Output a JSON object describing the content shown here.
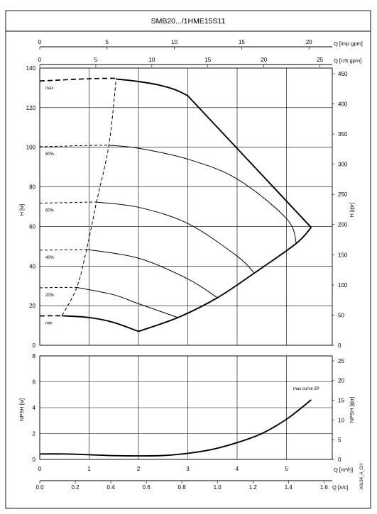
{
  "title": "SMB20.../1HME15S11",
  "doc_code": "A0194_A_CH",
  "chart_data": [
    {
      "type": "line",
      "name": "head",
      "xlabel": "Q [m³/h]",
      "ylabel_left": "H [м]",
      "ylabel_right": "H [фт]",
      "top_axis_1_label": "Q [imp gpm]",
      "top_axis_2_label": "Q [US gpm]",
      "xlim": [
        0,
        6.0
      ],
      "ylim": [
        0,
        140
      ],
      "x_ticks": [
        0,
        1,
        2,
        3,
        4,
        5
      ],
      "y_ticks": [
        0,
        20,
        40,
        60,
        80,
        100,
        120,
        140
      ],
      "y_right_ticks": [
        0,
        50,
        100,
        150,
        200,
        250,
        300,
        350,
        400,
        450
      ],
      "top_imp_ticks": [
        0,
        5,
        10,
        15,
        20
      ],
      "top_us_ticks": [
        0,
        5,
        10,
        15,
        20,
        25
      ],
      "grid": true,
      "series": [
        {
          "name": "max",
          "dashed_x": [
            0,
            0.3,
            0.6,
            1.0,
            1.4,
            1.55
          ],
          "dashed_y": [
            133.5,
            133.8,
            134.2,
            134.6,
            134.8,
            134.8
          ],
          "x": [
            1.55,
            2.0,
            2.4,
            2.75,
            3.0,
            5.5
          ],
          "y": [
            134.5,
            133.2,
            131.5,
            129.0,
            126.0,
            59.5
          ]
        },
        {
          "name": "80%",
          "dashed_x": [
            0,
            0.4,
            0.8,
            1.2,
            1.4
          ],
          "dashed_y": [
            100.3,
            100.5,
            100.8,
            101.0,
            101.0
          ],
          "x": [
            1.4,
            2.0,
            3.0,
            4.0,
            5.0,
            5.2
          ],
          "y": [
            101.0,
            99.5,
            94.0,
            84.0,
            64.0,
            51.5
          ]
        },
        {
          "name": "60%",
          "dashed_x": [
            0,
            0.5,
            1.0,
            1.15
          ],
          "dashed_y": [
            71.8,
            72.0,
            72.3,
            72.3
          ],
          "x": [
            1.15,
            2.0,
            3.0,
            4.0,
            4.35
          ],
          "y": [
            72.3,
            69.7,
            61.5,
            45.0,
            36.5
          ]
        },
        {
          "name": "40%",
          "dashed_x": [
            0,
            0.5,
            0.95
          ],
          "dashed_y": [
            48.0,
            48.2,
            48.4
          ],
          "x": [
            0.95,
            2.0,
            3.0,
            3.6
          ],
          "y": [
            48.4,
            44.0,
            33.5,
            24.0
          ]
        },
        {
          "name": "20%",
          "dashed_x": [
            0,
            0.4,
            0.75
          ],
          "dashed_y": [
            29.0,
            29.2,
            29.2
          ],
          "x": [
            0.75,
            1.5,
            2.0,
            2.8
          ],
          "y": [
            29.2,
            25.5,
            21.0,
            14.0
          ]
        },
        {
          "name": "min",
          "dashed_x": [
            0,
            0.25,
            0.45
          ],
          "dashed_y": [
            14.8,
            14.9,
            14.9
          ],
          "x": [
            0.45,
            1.0,
            1.5,
            2.0
          ],
          "y": [
            14.9,
            14.0,
            11.5,
            7.0
          ]
        }
      ],
      "boundary_min_to_max": {
        "x": [
          2.0,
          2.8,
          3.6,
          4.35,
          5.2,
          5.5
        ],
        "y": [
          7.0,
          14.0,
          24.0,
          36.5,
          51.5,
          59.5
        ]
      },
      "max_flow_dashed": {
        "x": [
          0.45,
          0.75,
          0.95,
          1.15,
          1.4,
          1.55
        ],
        "y": [
          14.9,
          29.2,
          48.4,
          72.3,
          101.0,
          134.8
        ]
      }
    },
    {
      "type": "line",
      "name": "npsh",
      "xlabel": "Q [m³/h]",
      "x2label": "Q [л/с]",
      "ylabel_left": "NPSH [м]",
      "ylabel_right": "NPSH [фт]",
      "xlim": [
        0,
        6.0
      ],
      "ylim": [
        0,
        8
      ],
      "x_ticks": [
        0,
        1,
        2,
        3,
        4,
        5
      ],
      "ls_ticks": [
        0.0,
        0.2,
        0.4,
        0.6,
        0.8,
        1.0,
        1.2,
        1.4,
        1.6
      ],
      "y_ticks": [
        0,
        2,
        4,
        6,
        8
      ],
      "y_right_ticks": [
        0,
        5,
        10,
        15,
        20,
        25
      ],
      "grid": true,
      "annotation": "max curve 2P",
      "series": [
        {
          "name": "max curve 2P",
          "x": [
            0,
            0.5,
            1.0,
            1.5,
            2.0,
            2.5,
            3.0,
            3.5,
            4.0,
            4.5,
            5.0,
            5.5
          ],
          "y": [
            0.42,
            0.42,
            0.36,
            0.29,
            0.27,
            0.3,
            0.47,
            0.78,
            1.3,
            2.0,
            3.1,
            4.6
          ]
        }
      ]
    }
  ]
}
